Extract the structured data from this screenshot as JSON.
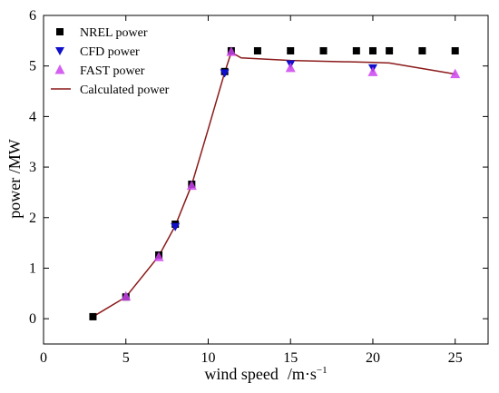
{
  "chart_data": {
    "type": "line",
    "xlabel_main": "wind speed",
    "xlabel_unit_base": "/m·s",
    "xlabel_unit_exp": "−1",
    "ylabel": "power /MW",
    "xlim": [
      0,
      27
    ],
    "ylim": [
      -0.5,
      6
    ],
    "xticks": [
      0,
      5,
      10,
      15,
      20,
      25
    ],
    "yticks": [
      0,
      1,
      2,
      3,
      4,
      5,
      6
    ],
    "legend_position": "top-left",
    "grid": false,
    "series": [
      {
        "name": "NREL power",
        "kind": "marker",
        "marker": "square",
        "color": "#000000",
        "x": [
          3,
          5,
          7,
          8,
          9,
          11,
          11.4,
          13,
          15,
          17,
          19,
          20,
          21,
          23,
          25
        ],
        "y": [
          0.04,
          0.43,
          1.26,
          1.87,
          2.66,
          4.89,
          5.3,
          5.3,
          5.3,
          5.3,
          5.3,
          5.3,
          5.3,
          5.3,
          5.3
        ]
      },
      {
        "name": "CFD power",
        "kind": "marker",
        "marker": "triangle-down",
        "color": "#1010cc",
        "x": [
          8,
          11,
          15,
          20
        ],
        "y": [
          1.82,
          4.86,
          5.04,
          4.96
        ]
      },
      {
        "name": "FAST power",
        "kind": "marker",
        "marker": "triangle-up",
        "color": "#cc44ee",
        "x": [
          5,
          7,
          9,
          11.4,
          15,
          20,
          25
        ],
        "y": [
          0.44,
          1.22,
          2.63,
          5.28,
          4.96,
          4.88,
          4.84
        ]
      },
      {
        "name": "Calculated power",
        "kind": "line",
        "color": "#8b1a1a",
        "x": [
          3,
          5,
          7,
          8,
          9,
          10,
          11,
          11.4,
          12,
          15,
          20,
          21,
          25
        ],
        "y": [
          0.04,
          0.43,
          1.24,
          1.84,
          2.65,
          3.75,
          4.87,
          5.27,
          5.16,
          5.11,
          5.07,
          5.06,
          4.84
        ]
      }
    ]
  }
}
